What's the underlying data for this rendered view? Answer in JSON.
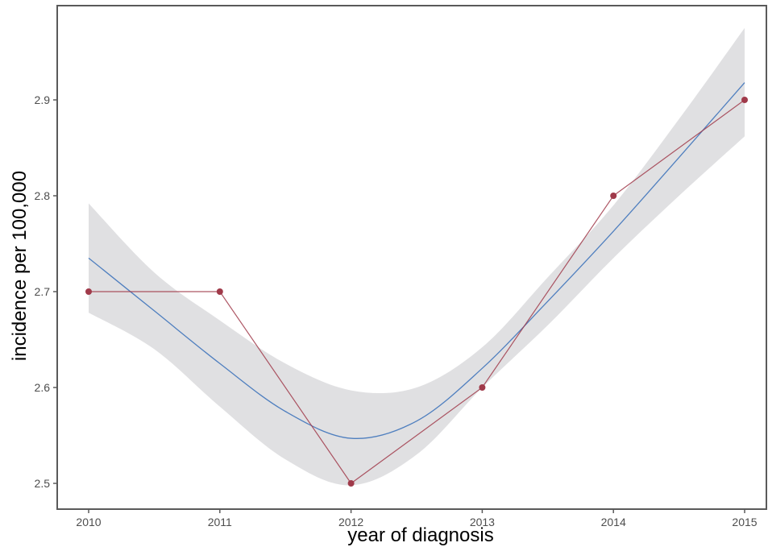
{
  "chart_data": {
    "type": "line",
    "title": "",
    "xlabel": "year of diagnosis",
    "ylabel": "incidence per 100,000",
    "x": [
      2010,
      2011,
      2012,
      2013,
      2014,
      2015
    ],
    "xlim": [
      2009.8,
      2015.2
    ],
    "ylim": [
      2.48,
      3.0
    ],
    "x_ticks": [
      "2010",
      "2011",
      "2012",
      "2013",
      "2014",
      "2015"
    ],
    "y_ticks": [
      "2.5",
      "2.6",
      "2.7",
      "2.8",
      "2.9"
    ],
    "grid": false,
    "legend": "none",
    "series": [
      {
        "kind": "observed",
        "color": "#a03a4a",
        "marker": "circle",
        "values": [
          2.7,
          2.7,
          2.5,
          2.6,
          2.8,
          2.9
        ]
      },
      {
        "kind": "smoothed-fit",
        "color": "#4f7fbf",
        "x": [
          2010,
          2010.5,
          2011,
          2011.5,
          2012,
          2012.5,
          2013,
          2013.5,
          2014,
          2014.5,
          2015
        ],
        "values": [
          2.735,
          2.68,
          2.625,
          2.575,
          2.547,
          2.565,
          2.62,
          2.69,
          2.763,
          2.84,
          2.918
        ],
        "ci_lower": [
          2.678,
          2.64,
          2.58,
          2.525,
          2.498,
          2.53,
          2.6,
          2.665,
          2.735,
          2.8,
          2.862
        ],
        "ci_upper": [
          2.792,
          2.72,
          2.67,
          2.625,
          2.597,
          2.6,
          2.642,
          2.715,
          2.79,
          2.88,
          2.975
        ],
        "ci_color": "#e0e0e2"
      }
    ]
  }
}
